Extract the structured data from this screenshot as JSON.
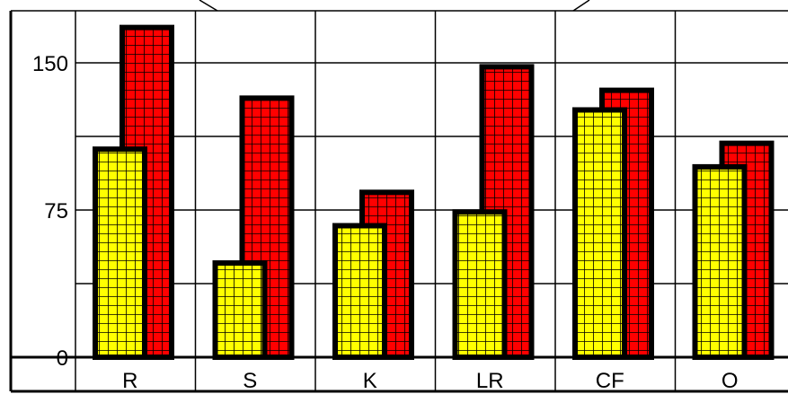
{
  "chart_data": {
    "type": "bar",
    "categories": [
      "R",
      "S",
      "K",
      "LR",
      "CF",
      "O"
    ],
    "series": [
      {
        "values": [
          106,
          48,
          67,
          74,
          126,
          97
        ],
        "color": "#ffff00"
      },
      {
        "values": [
          168,
          132,
          84,
          148,
          136,
          109
        ],
        "color": "#ff0000"
      }
    ],
    "yticks": [
      0,
      75,
      150
    ],
    "ylim": [
      0,
      175
    ],
    "grid": true,
    "bar_pattern": "fine-grid",
    "legend": "none"
  }
}
